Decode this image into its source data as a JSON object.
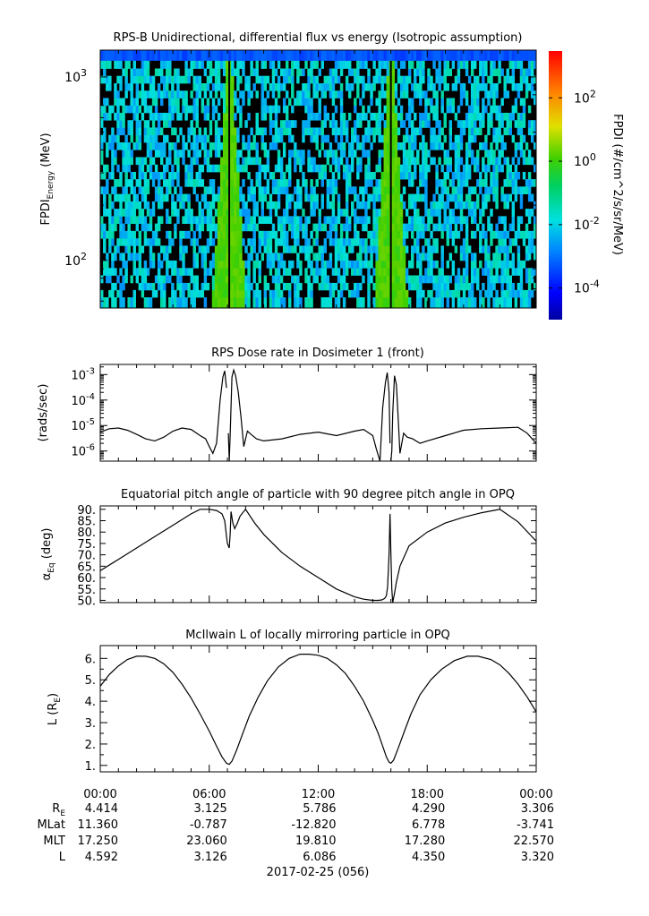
{
  "colors": {
    "axis": "#000000",
    "background": "#ffffff",
    "line": "#000000",
    "no_data": "#000000"
  },
  "chart_data": [
    {
      "type": "heatmap",
      "title": "RPS-B  Unidirectional, differential flux vs energy (Isotropic assumption)",
      "ylabel_main": "FPDI",
      "ylabel_sub": "Energy",
      "ylabel_unit": " (MeV)",
      "yscale": "log",
      "ylim": [
        55,
        1400
      ],
      "yticks": [
        {
          "v": 100,
          "base": "10",
          "exp": "2"
        },
        {
          "v": 1000,
          "base": "10",
          "exp": "3"
        }
      ],
      "x_range_hours": [
        0,
        24
      ],
      "energy_channels_mev": [
        60,
        66,
        72,
        79,
        87,
        95,
        105,
        115,
        126,
        138,
        152,
        166,
        183,
        200,
        220,
        241,
        265,
        290,
        318,
        349,
        383,
        420,
        461,
        506,
        555,
        609,
        668,
        733,
        804,
        882,
        968,
        1062,
        1165,
        1300
      ],
      "enhancement_times_hours": [
        7.1,
        16.0
      ],
      "flux_background": 0.01,
      "flux_peak": 1.5,
      "top_channel_flux": 0.0005,
      "colorbar": {
        "label": "FPDI (#/cm^2/s/sr/MeV)",
        "scale": "log",
        "range": [
          1e-05,
          3000
        ],
        "ticks": [
          {
            "v": 0.0001,
            "base": "10",
            "exp": "-4"
          },
          {
            "v": 0.01,
            "base": "10",
            "exp": "-2"
          },
          {
            "v": 1,
            "base": "10",
            "exp": "0"
          },
          {
            "v": 100,
            "base": "10",
            "exp": "2"
          }
        ]
      }
    },
    {
      "type": "line",
      "title": "RPS  Dose rate in Dosimeter 1 (front)",
      "ylabel": "(rads/sec)",
      "yscale": "log",
      "ylim": [
        4e-07,
        0.0025
      ],
      "yticks": [
        {
          "v": 1e-06,
          "base": "10",
          "exp": "-6"
        },
        {
          "v": 1e-05,
          "base": "10",
          "exp": "-5"
        },
        {
          "v": 0.0001,
          "base": "10",
          "exp": "-4"
        },
        {
          "v": 0.001,
          "base": "10",
          "exp": "-3"
        }
      ],
      "x": [
        0,
        0.5,
        1,
        1.5,
        2,
        2.5,
        3,
        3.5,
        4,
        4.5,
        5,
        5.5,
        5.8,
        6.0,
        6.2,
        6.4,
        6.6,
        6.75,
        6.85,
        6.95,
        7.05,
        7.1,
        7.15,
        7.25,
        7.35,
        7.45,
        7.6,
        7.75,
        7.9,
        8.1,
        8.3,
        8.6,
        9,
        10,
        11,
        12,
        13,
        14,
        14.5,
        15.0,
        15.2,
        15.4,
        15.55,
        15.7,
        15.8,
        15.9,
        15.95,
        16.0,
        16.05,
        16.1,
        16.2,
        16.3,
        16.4,
        16.5,
        16.7,
        16.9,
        17.2,
        17.6,
        18,
        19,
        20,
        21,
        22,
        23,
        23.5,
        24
      ],
      "values": [
        5.5e-06,
        7.5e-06,
        8e-06,
        6.5e-06,
        4.5e-06,
        3e-06,
        2.5e-06,
        3.5e-06,
        6e-06,
        8e-06,
        7e-06,
        4e-06,
        3e-06,
        1.5e-06,
        8e-07,
        2e-06,
        0.0001,
        0.0008,
        0.0014,
        0.0003,
        5e-06,
        3e-07,
        4e-06,
        0.0008,
        0.0015,
        0.0009,
        0.0002,
        2e-05,
        1.5e-06,
        6e-06,
        4.5e-06,
        3e-06,
        2.5e-06,
        3e-06,
        4.5e-06,
        5.5e-06,
        4e-06,
        6e-06,
        7e-06,
        4e-06,
        1.2e-06,
        4e-07,
        5e-05,
        0.0005,
        0.0012,
        0.0002,
        2e-06,
        3e-07,
        1e-06,
        3e-05,
        0.0009,
        0.0004,
        2e-05,
        8e-07,
        5e-06,
        3.5e-06,
        3e-06,
        2e-06,
        2.5e-06,
        4e-06,
        6.5e-06,
        7.5e-06,
        8e-06,
        8.5e-06,
        5e-06,
        2e-06
      ],
      "gaps_after_index": [
        19,
        46
      ]
    },
    {
      "type": "line",
      "title": "Equatorial pitch angle of particle with 90 degree pitch angle in OPQ",
      "ylabel_main": "α",
      "ylabel_sub": "Eq",
      "ylabel_unit": " (deg)",
      "ylim": [
        49,
        91.5
      ],
      "yticks": [
        50,
        55,
        60,
        65,
        70,
        75,
        80,
        85,
        90
      ],
      "ytick_labels": [
        "50.",
        "55.",
        "60.",
        "65.",
        "70.",
        "75.",
        "80.",
        "85.",
        "90."
      ],
      "x": [
        0,
        1,
        2,
        3,
        4,
        5,
        5.5,
        6.0,
        6.4,
        6.7,
        6.85,
        7.0,
        7.1,
        7.15,
        7.2,
        7.3,
        7.4,
        7.55,
        7.7,
        8.0,
        8.5,
        9,
        10,
        11,
        12,
        13,
        14,
        14.5,
        15,
        15.3,
        15.5,
        15.65,
        15.75,
        15.82,
        15.9,
        15.95,
        16.0,
        16.05,
        16.1,
        16.2,
        16.3,
        16.5,
        17,
        18,
        19,
        20,
        21,
        22,
        23,
        24
      ],
      "values": [
        63,
        68,
        73,
        78,
        83,
        88,
        90,
        90,
        89.5,
        88,
        85,
        75,
        73,
        79,
        89,
        84,
        81.5,
        84,
        87,
        90,
        84,
        79,
        71,
        65,
        60,
        55,
        51.5,
        50.5,
        50,
        50,
        50.2,
        50.8,
        52,
        56,
        70,
        88,
        70,
        55,
        49,
        53,
        58,
        65,
        74,
        80,
        84,
        86.5,
        88.5,
        90,
        84.5,
        76
      ]
    },
    {
      "type": "line",
      "title": "McIlwain L of locally mirroring particle in OPQ",
      "ylabel_main": "L (R",
      "ylabel_sub": "E",
      "ylabel_unit": ")",
      "ylim": [
        0.7,
        6.6
      ],
      "yticks": [
        1,
        2,
        3,
        4,
        5,
        6
      ],
      "ytick_labels": [
        "1.",
        "2.",
        "3.",
        "4.",
        "5.",
        "6."
      ],
      "x": [
        0,
        0.5,
        1,
        1.5,
        2,
        2.5,
        3,
        3.5,
        4,
        4.5,
        5,
        5.5,
        6,
        6.4,
        6.7,
        6.95,
        7.1,
        7.25,
        7.5,
        7.8,
        8.2,
        8.7,
        9.2,
        9.8,
        10.4,
        11,
        11.5,
        12,
        12.5,
        13,
        13.5,
        14,
        14.5,
        15,
        15.3,
        15.55,
        15.75,
        15.9,
        16.0,
        16.15,
        16.4,
        16.7,
        17.1,
        17.6,
        18.2,
        18.8,
        19.5,
        20.2,
        20.8,
        21.5,
        22,
        22.5,
        23,
        23.5,
        24
      ],
      "values": [
        4.7,
        5.25,
        5.65,
        5.95,
        6.1,
        6.1,
        6.0,
        5.75,
        5.35,
        4.8,
        4.15,
        3.4,
        2.6,
        1.9,
        1.4,
        1.1,
        1.05,
        1.2,
        1.7,
        2.4,
        3.3,
        4.2,
        4.95,
        5.6,
        6.0,
        6.2,
        6.2,
        6.15,
        6.0,
        5.7,
        5.3,
        4.7,
        4.0,
        3.1,
        2.5,
        1.9,
        1.4,
        1.15,
        1.1,
        1.25,
        1.8,
        2.5,
        3.4,
        4.3,
        5.0,
        5.5,
        5.9,
        6.1,
        6.1,
        5.95,
        5.7,
        5.3,
        4.8,
        4.2,
        3.5
      ]
    }
  ],
  "time_axis": {
    "range_hours": [
      0,
      24
    ],
    "major_labels": [
      "00:00",
      "06:00",
      "12:00",
      "18:00",
      "00:00"
    ],
    "major_hours": [
      0,
      6,
      12,
      18,
      24
    ],
    "minor_step_hours": 1
  },
  "ephemeris": {
    "rows": [
      {
        "label_main": "R",
        "label_sub": "E",
        "values": [
          "4.414",
          "3.125",
          "5.786",
          "4.290",
          "3.306"
        ]
      },
      {
        "label_main": "MLat",
        "label_sub": "",
        "values": [
          "11.360",
          "-0.787",
          "-12.820",
          "6.778",
          "-3.741"
        ]
      },
      {
        "label_main": "MLT",
        "label_sub": "",
        "values": [
          "17.250",
          "23.060",
          "19.810",
          "17.280",
          "22.570"
        ]
      },
      {
        "label_main": "L",
        "label_sub": "",
        "values": [
          "4.592",
          "3.126",
          "6.086",
          "4.350",
          "3.320"
        ]
      }
    ],
    "date_label": "2017-02-25 (056)"
  }
}
